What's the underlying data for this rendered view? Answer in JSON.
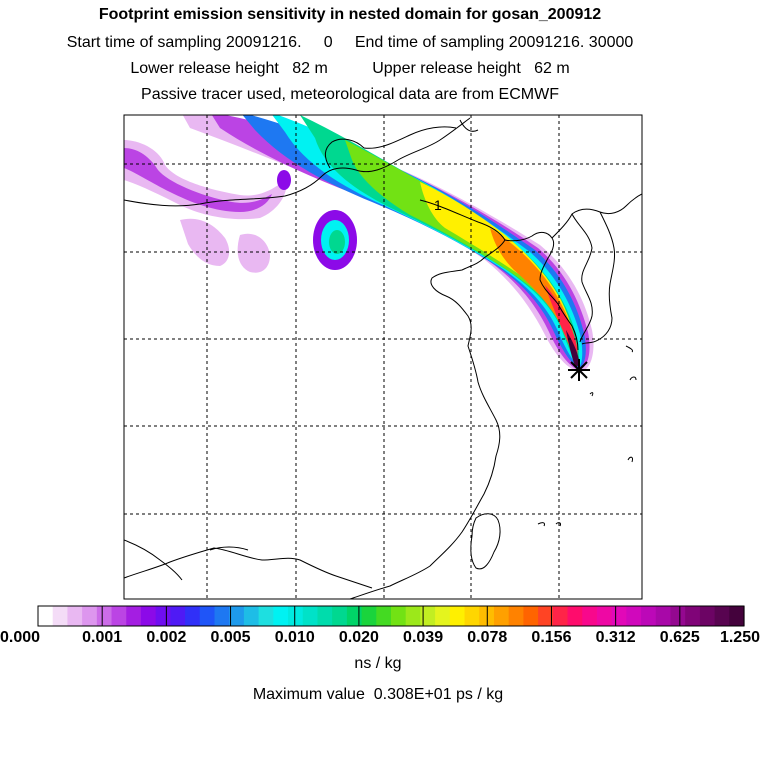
{
  "header": {
    "title": "Footprint emission sensitivity in nested domain for gosan_200912",
    "line1": "Start time of sampling 20091216.     0     End time of sampling 20091216. 30000",
    "line2": "Lower release height   82 m          Upper release height   62 m",
    "line3": "Passive tracer used, meteorological data are from ECMWF"
  },
  "map": {
    "contour_label": "1",
    "receptor_marker": "star-marker-icon",
    "gridlines": "dashed"
  },
  "colorbar": {
    "tick_labels": [
      "0.000",
      "0.001",
      "0.002",
      "0.005",
      "0.010",
      "0.020",
      "0.039",
      "0.078",
      "0.156",
      "0.312",
      "0.625",
      "1.250"
    ],
    "unit": "ns / kg",
    "colors": [
      "#ffffff",
      "#f4dcf7",
      "#e9b8f2",
      "#dd96ee",
      "#cc6ce8",
      "#bb44e4",
      "#a41ee2",
      "#8c0ae8",
      "#6f0ef0",
      "#4f1af5",
      "#3030f8",
      "#1f55f8",
      "#1e78f2",
      "#1e9aec",
      "#1ebde6",
      "#1edfe0",
      "#00f2f2",
      "#00eae0",
      "#00e2c8",
      "#00dcac",
      "#00d890",
      "#00d468",
      "#1ad43c",
      "#44da22",
      "#72e214",
      "#9ce81a",
      "#c2ee22",
      "#e4f41e",
      "#fff000",
      "#ffd600",
      "#ffbc00",
      "#ffa000",
      "#ff8200",
      "#ff6400",
      "#ff4424",
      "#ff2448",
      "#ff0c6c",
      "#f8088c",
      "#ee08a4",
      "#e208b8",
      "#d008bc",
      "#bc08b8",
      "#a808a8",
      "#940890",
      "#800478",
      "#6c0464",
      "#580450",
      "#44023c"
    ]
  },
  "footer": {
    "max_value": "Maximum value  0.308E+01 ps / kg"
  },
  "plume_colors": {
    "outer_light": "#e9b8f2",
    "purple": "#bb44e4",
    "violet": "#8c0ae8",
    "blue": "#1e78f2",
    "cyan": "#00f2f2",
    "teal": "#00d890",
    "green": "#72e214",
    "yellow": "#fff000",
    "orange": "#ff8200",
    "red": "#ff2448",
    "magenta": "#f8088c",
    "dark": "#44023c"
  }
}
